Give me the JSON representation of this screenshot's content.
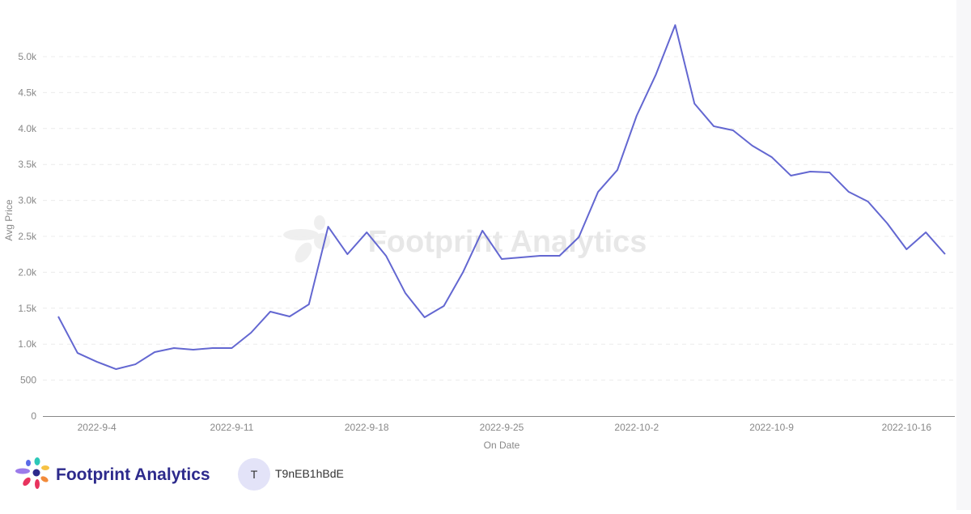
{
  "chart_data": {
    "type": "line",
    "watermark": "Footprint Analytics",
    "y_label": "Avg Price",
    "x_label": "On Date",
    "categories": [
      null,
      null,
      "2022-9-4",
      null,
      null,
      null,
      null,
      null,
      null,
      "2022-9-11",
      null,
      null,
      null,
      null,
      null,
      null,
      "2022-9-18",
      null,
      null,
      null,
      null,
      null,
      null,
      "2022-9-25",
      null,
      null,
      null,
      null,
      null,
      null,
      "2022-10-2",
      null,
      null,
      null,
      null,
      null,
      null,
      "2022-10-9",
      null,
      null,
      null,
      null,
      null,
      null,
      "2022-10-16",
      null,
      null
    ],
    "series": [
      {
        "name": "Avg Price",
        "color": "#6367d1",
        "values": [
          1385,
          878,
          755,
          653,
          720,
          890,
          946,
          923,
          946,
          946,
          1160,
          1453,
          1385,
          1554,
          2635,
          2252,
          2556,
          2230,
          1712,
          1374,
          1532,
          2005,
          2579,
          2185,
          2207,
          2230,
          2230,
          2489,
          3119,
          3423,
          4178,
          4752,
          5439,
          4347,
          4032,
          3975,
          3761,
          3604,
          3345,
          3401,
          3390,
          3119,
          2984,
          2680,
          2320,
          2556,
          2252
        ]
      }
    ],
    "ylim": [
      0,
      5500
    ],
    "yticks": [
      0,
      500,
      {
        "value": 1000,
        "label": "1.0k"
      },
      {
        "value": 1500,
        "label": "1.5k"
      },
      {
        "value": 2000,
        "label": "2.0k"
      },
      {
        "value": 2500,
        "label": "2.5k"
      },
      {
        "value": 3000,
        "label": "3.0k"
      },
      {
        "value": 3500,
        "label": "3.5k"
      },
      {
        "value": 4000,
        "label": "4.0k"
      },
      {
        "value": 4500,
        "label": "4.5k"
      },
      {
        "value": 5000,
        "label": "5.0k"
      }
    ],
    "grid": true
  },
  "footer": {
    "brand": "Footprint Analytics",
    "avatar": "T",
    "user": "T9nEB1hBdE"
  }
}
